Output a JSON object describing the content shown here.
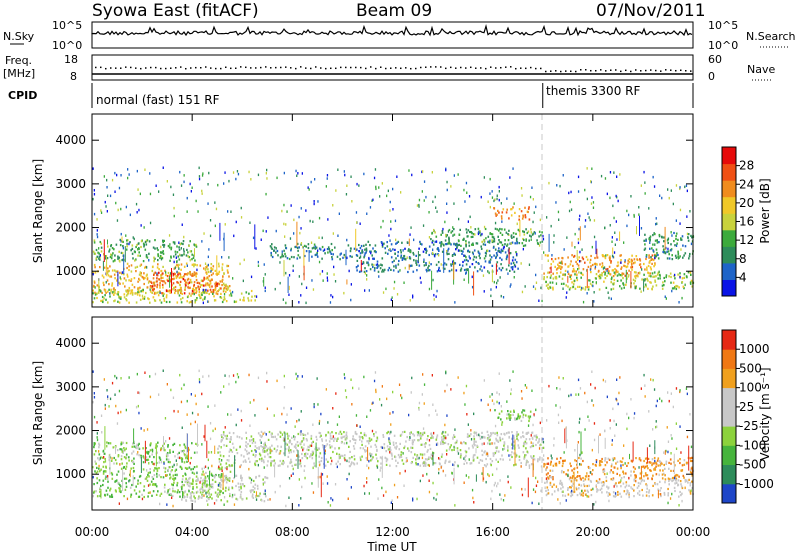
{
  "header": {
    "station": "Syowa East (fitACF)",
    "beam": "Beam 09",
    "date": "07/Nov/2011"
  },
  "top_panels": {
    "nsky_label": "N.Sky",
    "nsearch_label": "N.Search",
    "nsky_ticks": [
      "10^5",
      "10^0"
    ],
    "nsearch_ticks": [
      "10^5",
      "10^0"
    ],
    "freq_label_1": "Freq.",
    "freq_label_2": "[MHz]",
    "freq_ticks": [
      "18",
      "8"
    ],
    "nave_label": "Nave",
    "nave_ticks": [
      "60",
      "0"
    ],
    "cpid_label": "CPID",
    "cpid_modes": [
      {
        "label": "normal (fast) 151 RF",
        "start_hour": 0
      },
      {
        "label": "themis 3300 RF",
        "start_hour": 18
      }
    ]
  },
  "axes": {
    "ylabel": "Slant Range [km]",
    "xlabel": "Time UT",
    "y_ticks": [
      "1000",
      "2000",
      "3000",
      "4000"
    ],
    "x_ticks": [
      "00:00",
      "04:00",
      "08:00",
      "12:00",
      "16:00",
      "20:00",
      "00:00"
    ]
  },
  "chart_data": [
    {
      "type": "heatmap",
      "name": "power",
      "xlabel": "Time UT",
      "ylabel": "Slant Range [km]",
      "x_range_hours": [
        0,
        24
      ],
      "y_range_km": [
        180,
        4600
      ],
      "colorbar_label": "Power [dB]",
      "colorbar_ticks": [
        "28",
        "24",
        "20",
        "16",
        "12",
        "8",
        "4"
      ],
      "colorbar_colors": [
        "#0a14e6",
        "#1e64c8",
        "#2d8c5a",
        "#3caa3c",
        "#c8d23c",
        "#f0c828",
        "#f08c1e",
        "#f05014",
        "#e60a0a"
      ],
      "colorbar_range": [
        0,
        32
      ],
      "regions": [
        {
          "t0": 0.0,
          "t1": 4.2,
          "r0": 1250,
          "r1": 1750,
          "level": 12
        },
        {
          "t0": 0.0,
          "t1": 5.5,
          "r0": 500,
          "r1": 1200,
          "level": 20
        },
        {
          "t0": 2.3,
          "t1": 5.2,
          "r0": 500,
          "r1": 1000,
          "level": 26
        },
        {
          "t0": 0.0,
          "t1": 6.5,
          "r0": 300,
          "r1": 600,
          "level": 16
        },
        {
          "t0": 7.0,
          "t1": 10.5,
          "r0": 1300,
          "r1": 1650,
          "level": 8
        },
        {
          "t0": 10.5,
          "t1": 17.0,
          "r0": 1000,
          "r1": 1700,
          "level": 7
        },
        {
          "t0": 13.5,
          "t1": 18.0,
          "r0": 1600,
          "r1": 2000,
          "level": 11
        },
        {
          "t0": 16.0,
          "t1": 17.5,
          "r0": 2200,
          "r1": 2500,
          "level": 24
        },
        {
          "t0": 18.0,
          "t1": 22.5,
          "r0": 900,
          "r1": 1400,
          "level": 22
        },
        {
          "t0": 18.0,
          "t1": 24.0,
          "r0": 600,
          "r1": 1000,
          "level": 15
        },
        {
          "t0": 22.0,
          "t1": 24.0,
          "r0": 1300,
          "r1": 1900,
          "level": 10
        }
      ]
    },
    {
      "type": "heatmap",
      "name": "velocity",
      "xlabel": "Time UT",
      "ylabel": "Slant Range [km]",
      "x_range_hours": [
        0,
        24
      ],
      "y_range_km": [
        180,
        4600
      ],
      "colorbar_label": "Velocity [m s⁻¹]",
      "colorbar_ticks": [
        "1000",
        "500",
        "100",
        "25",
        "-25",
        "-100",
        "-500",
        "-1000"
      ],
      "colorbar_colors": [
        "#1e46c8",
        "#2d8c5a",
        "#46b43c",
        "#8cd23c",
        "#c8c8c8",
        "#c8c8c8",
        "#f0a01e",
        "#f07814",
        "#e62814"
      ],
      "colorbar_range": [
        -1200,
        1200
      ],
      "regions": [
        {
          "t0": 0.0,
          "t1": 4.2,
          "r0": 1250,
          "r1": 1750,
          "level": -300
        },
        {
          "t0": 0.0,
          "t1": 5.5,
          "r0": 500,
          "r1": 1200,
          "level": -350
        },
        {
          "t0": 3.5,
          "t1": 7.0,
          "r0": 400,
          "r1": 1000,
          "level": 0
        },
        {
          "t0": 5.0,
          "t1": 18.0,
          "r0": 1200,
          "r1": 2000,
          "level": 0
        },
        {
          "t0": 16.0,
          "t1": 17.5,
          "r0": 2200,
          "r1": 2500,
          "level": -300
        },
        {
          "t0": 18.0,
          "t1": 24.0,
          "r0": 900,
          "r1": 1400,
          "level": 600
        },
        {
          "t0": 18.0,
          "t1": 24.0,
          "r0": 500,
          "r1": 900,
          "level": 250
        }
      ]
    }
  ]
}
